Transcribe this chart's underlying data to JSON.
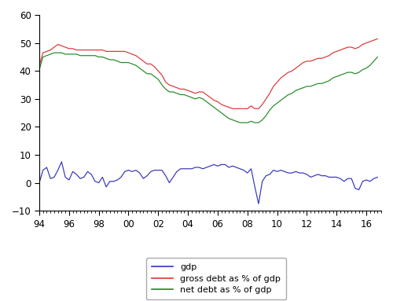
{
  "xlim": [
    1994,
    2017
  ],
  "ylim": [
    -10,
    60
  ],
  "yticks": [
    -10,
    0,
    10,
    20,
    30,
    40,
    50,
    60
  ],
  "xtick_labels": [
    "94",
    "96",
    "98",
    "00",
    "02",
    "04",
    "06",
    "08",
    "10",
    "12",
    "14",
    "16"
  ],
  "xtick_positions": [
    1994,
    1996,
    1998,
    2000,
    2002,
    2004,
    2006,
    2008,
    2010,
    2012,
    2014,
    2016
  ],
  "legend_labels": [
    "gdp",
    "gross debt as % of gdp",
    "net debt as % of gdp"
  ],
  "line_colors": [
    "#3333bb",
    "#dd3333",
    "#228822"
  ],
  "gdp_years": [
    1994.0,
    1994.25,
    1994.5,
    1994.75,
    1995.0,
    1995.25,
    1995.5,
    1995.75,
    1996.0,
    1996.25,
    1996.5,
    1996.75,
    1997.0,
    1997.25,
    1997.5,
    1997.75,
    1998.0,
    1998.25,
    1998.5,
    1998.75,
    1999.0,
    1999.25,
    1999.5,
    1999.75,
    2000.0,
    2000.25,
    2000.5,
    2000.75,
    2001.0,
    2001.25,
    2001.5,
    2001.75,
    2002.0,
    2002.25,
    2002.5,
    2002.75,
    2003.0,
    2003.25,
    2003.5,
    2003.75,
    2004.0,
    2004.25,
    2004.5,
    2004.75,
    2005.0,
    2005.25,
    2005.5,
    2005.75,
    2006.0,
    2006.25,
    2006.5,
    2006.75,
    2007.0,
    2007.25,
    2007.5,
    2007.75,
    2008.0,
    2008.25,
    2008.5,
    2008.75,
    2009.0,
    2009.25,
    2009.5,
    2009.75,
    2010.0,
    2010.25,
    2010.5,
    2010.75,
    2011.0,
    2011.25,
    2011.5,
    2011.75,
    2012.0,
    2012.25,
    2012.5,
    2012.75,
    2013.0,
    2013.25,
    2013.5,
    2013.75,
    2014.0,
    2014.25,
    2014.5,
    2014.75,
    2015.0,
    2015.25,
    2015.5,
    2015.75,
    2016.0,
    2016.25,
    2016.5,
    2016.75
  ],
  "gdp_values": [
    0.0,
    4.5,
    5.5,
    1.5,
    2.0,
    4.5,
    7.5,
    2.0,
    1.0,
    4.0,
    3.0,
    1.5,
    2.0,
    4.0,
    3.0,
    0.5,
    0.0,
    2.0,
    -1.5,
    0.5,
    0.5,
    1.0,
    2.0,
    4.0,
    4.5,
    4.0,
    4.5,
    3.5,
    1.5,
    2.5,
    4.0,
    4.5,
    4.5,
    4.5,
    2.5,
    0.0,
    2.0,
    4.0,
    5.0,
    5.0,
    5.0,
    5.0,
    5.5,
    5.5,
    5.0,
    5.5,
    6.0,
    6.5,
    6.0,
    6.5,
    6.5,
    5.5,
    6.0,
    5.5,
    5.0,
    4.5,
    3.5,
    5.0,
    -1.5,
    -7.5,
    0.5,
    2.5,
    3.0,
    4.5,
    4.0,
    4.5,
    4.0,
    3.5,
    3.5,
    4.0,
    3.5,
    3.5,
    3.0,
    2.0,
    2.5,
    3.0,
    2.5,
    2.5,
    2.0,
    2.0,
    2.0,
    1.5,
    0.5,
    1.5,
    1.5,
    -2.0,
    -2.5,
    0.5,
    1.0,
    0.5,
    1.5,
    2.0
  ],
  "gross_years": [
    1994.0,
    1994.25,
    1994.5,
    1994.75,
    1995.0,
    1995.25,
    1995.5,
    1995.75,
    1996.0,
    1996.25,
    1996.5,
    1996.75,
    1997.0,
    1997.25,
    1997.5,
    1997.75,
    1998.0,
    1998.25,
    1998.5,
    1998.75,
    1999.0,
    1999.25,
    1999.5,
    1999.75,
    2000.0,
    2000.25,
    2000.5,
    2000.75,
    2001.0,
    2001.25,
    2001.5,
    2001.75,
    2002.0,
    2002.25,
    2002.5,
    2002.75,
    2003.0,
    2003.25,
    2003.5,
    2003.75,
    2004.0,
    2004.25,
    2004.5,
    2004.75,
    2005.0,
    2005.25,
    2005.5,
    2005.75,
    2006.0,
    2006.25,
    2006.5,
    2006.75,
    2007.0,
    2007.25,
    2007.5,
    2007.75,
    2008.0,
    2008.25,
    2008.5,
    2008.75,
    2009.0,
    2009.25,
    2009.5,
    2009.75,
    2010.0,
    2010.25,
    2010.5,
    2010.75,
    2011.0,
    2011.25,
    2011.5,
    2011.75,
    2012.0,
    2012.25,
    2012.5,
    2012.75,
    2013.0,
    2013.25,
    2013.5,
    2013.75,
    2014.0,
    2014.25,
    2014.5,
    2014.75,
    2015.0,
    2015.25,
    2015.5,
    2015.75,
    2016.0,
    2016.25,
    2016.5,
    2016.75
  ],
  "gross_values": [
    42.0,
    46.5,
    47.0,
    47.5,
    48.5,
    49.5,
    49.0,
    48.5,
    48.0,
    48.0,
    47.5,
    47.5,
    47.5,
    47.5,
    47.5,
    47.5,
    47.5,
    47.5,
    47.0,
    47.0,
    47.0,
    47.0,
    47.0,
    47.0,
    46.5,
    46.0,
    45.5,
    44.5,
    43.5,
    42.5,
    42.5,
    41.5,
    40.0,
    38.5,
    36.0,
    35.0,
    34.5,
    34.0,
    33.5,
    33.5,
    33.0,
    32.5,
    32.0,
    32.5,
    32.5,
    31.5,
    30.5,
    29.5,
    29.0,
    28.0,
    27.5,
    27.0,
    26.5,
    26.5,
    26.5,
    26.5,
    26.5,
    27.5,
    26.5,
    26.5,
    28.0,
    30.0,
    32.0,
    34.5,
    36.0,
    37.5,
    38.5,
    39.5,
    40.0,
    41.0,
    42.0,
    43.0,
    43.5,
    43.5,
    44.0,
    44.5,
    44.5,
    45.0,
    45.5,
    46.5,
    47.0,
    47.5,
    48.0,
    48.5,
    48.5,
    48.0,
    48.5,
    49.5,
    50.0,
    50.5,
    51.0,
    51.5
  ],
  "net_years": [
    1994.0,
    1994.25,
    1994.5,
    1994.75,
    1995.0,
    1995.25,
    1995.5,
    1995.75,
    1996.0,
    1996.25,
    1996.5,
    1996.75,
    1997.0,
    1997.25,
    1997.5,
    1997.75,
    1998.0,
    1998.25,
    1998.5,
    1998.75,
    1999.0,
    1999.25,
    1999.5,
    1999.75,
    2000.0,
    2000.25,
    2000.5,
    2000.75,
    2001.0,
    2001.25,
    2001.5,
    2001.75,
    2002.0,
    2002.25,
    2002.5,
    2002.75,
    2003.0,
    2003.25,
    2003.5,
    2003.75,
    2004.0,
    2004.25,
    2004.5,
    2004.75,
    2005.0,
    2005.25,
    2005.5,
    2005.75,
    2006.0,
    2006.25,
    2006.5,
    2006.75,
    2007.0,
    2007.25,
    2007.5,
    2007.75,
    2008.0,
    2008.25,
    2008.5,
    2008.75,
    2009.0,
    2009.25,
    2009.5,
    2009.75,
    2010.0,
    2010.25,
    2010.5,
    2010.75,
    2011.0,
    2011.25,
    2011.5,
    2011.75,
    2012.0,
    2012.25,
    2012.5,
    2012.75,
    2013.0,
    2013.25,
    2013.5,
    2013.75,
    2014.0,
    2014.25,
    2014.5,
    2014.75,
    2015.0,
    2015.25,
    2015.5,
    2015.75,
    2016.0,
    2016.25,
    2016.5,
    2016.75
  ],
  "net_values": [
    40.5,
    45.0,
    45.5,
    46.0,
    46.5,
    46.5,
    46.5,
    46.0,
    46.0,
    46.0,
    46.0,
    45.5,
    45.5,
    45.5,
    45.5,
    45.5,
    45.0,
    45.0,
    44.5,
    44.0,
    44.0,
    43.5,
    43.0,
    43.0,
    43.0,
    42.5,
    42.0,
    41.0,
    40.0,
    39.0,
    39.0,
    38.0,
    37.0,
    35.0,
    33.5,
    32.5,
    32.5,
    32.0,
    31.5,
    31.5,
    31.0,
    30.5,
    30.0,
    30.5,
    30.0,
    29.0,
    28.0,
    27.0,
    26.0,
    25.0,
    24.0,
    23.0,
    22.5,
    22.0,
    21.5,
    21.5,
    21.5,
    22.0,
    21.5,
    21.5,
    22.5,
    24.0,
    26.0,
    27.5,
    28.5,
    29.5,
    30.5,
    31.5,
    32.0,
    33.0,
    33.5,
    34.0,
    34.5,
    34.5,
    35.0,
    35.5,
    35.5,
    36.0,
    36.5,
    37.5,
    38.0,
    38.5,
    39.0,
    39.5,
    39.5,
    39.0,
    39.5,
    40.5,
    41.0,
    42.0,
    43.5,
    45.0
  ]
}
